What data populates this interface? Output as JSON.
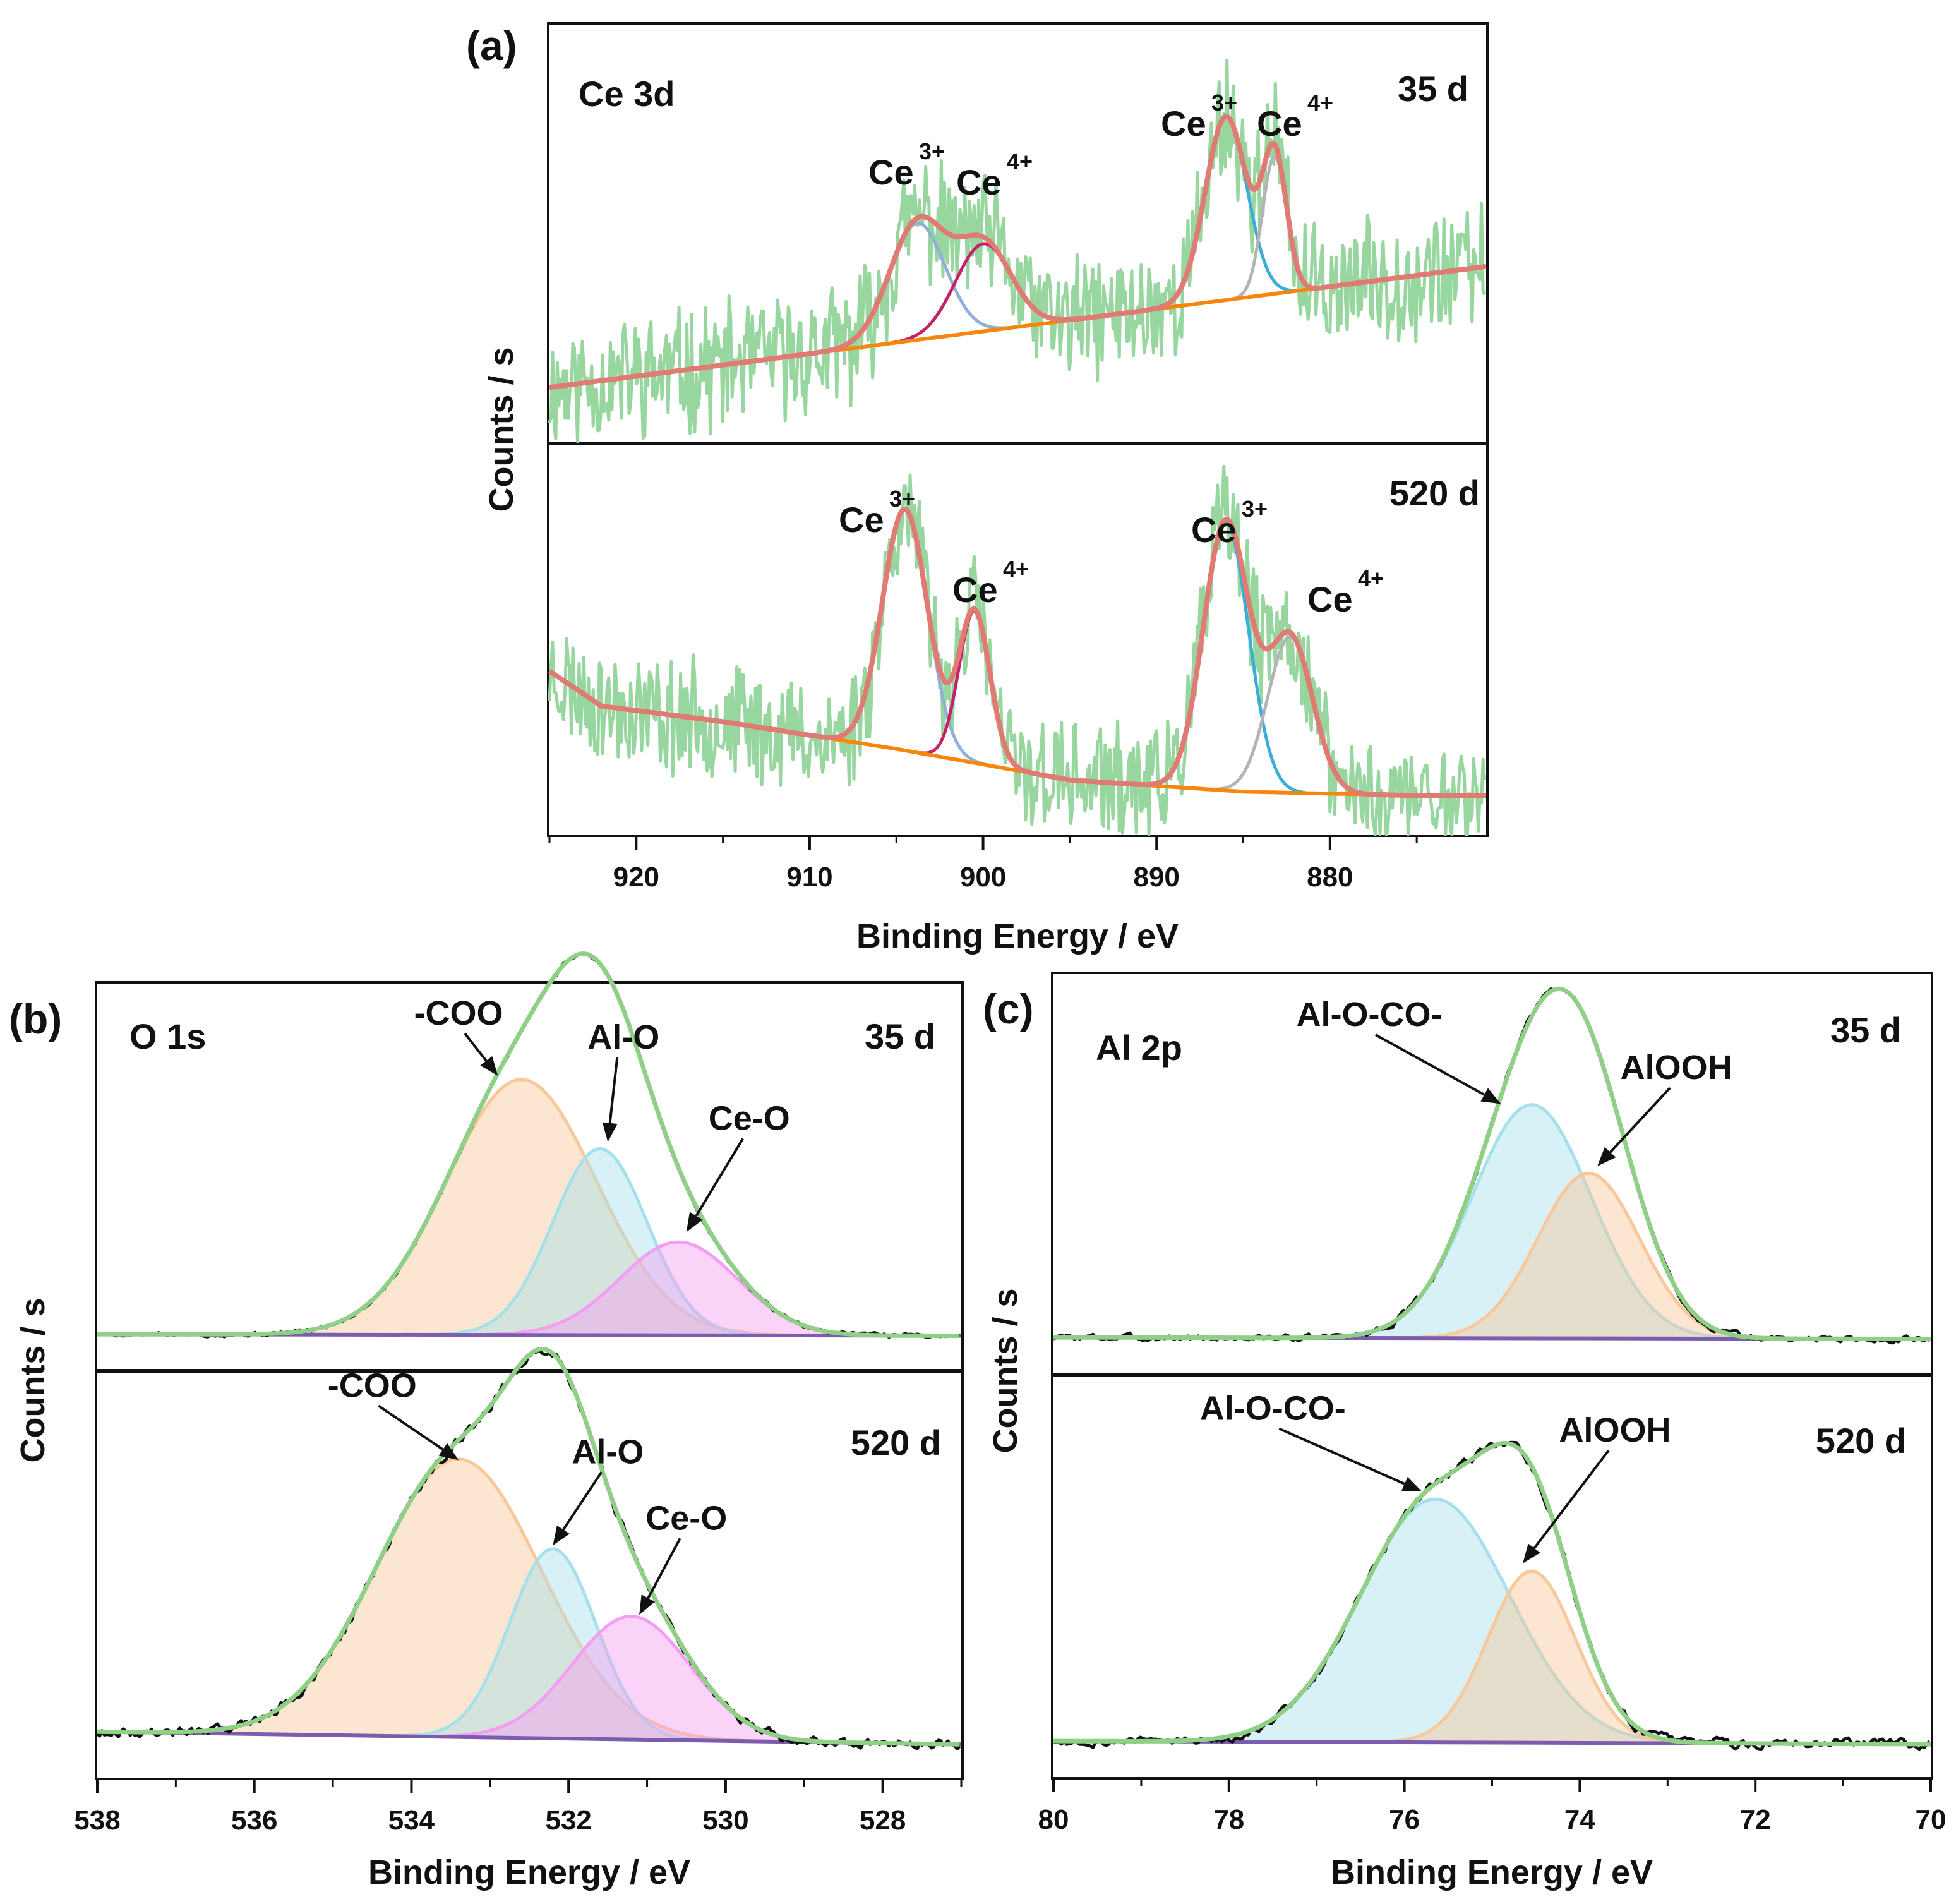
{
  "colors": {
    "raw_a": "#98d6a0",
    "fit_a": "#e07b74",
    "bg_a": "#f7860e",
    "ce3_high": "#91b0d8",
    "ce4_high": "#c4236a",
    "ce3_low": "#3aaed8",
    "ce4_low": "#b4b4b4",
    "raw_bc": "#111111",
    "fit_bc": "#8fcf86",
    "baseline_bc": "#7c5cae",
    "coo": "#f9c89a",
    "alo": "#a6e0ea",
    "ceo": "#f39ef2",
    "aloco": "#a6e0ea",
    "alooh": "#f9c89a"
  },
  "chart_data": [
    {
      "id": "a",
      "type": "line",
      "panel_label": "(a)",
      "element": "Ce 3d",
      "xlabel": "Binding Energy / eV",
      "ylabel": "Counts / s",
      "xlim": [
        925,
        871
      ],
      "xticks": [
        "920",
        "910",
        "900",
        "890",
        "880"
      ],
      "xtick_values": [
        920,
        910,
        900,
        890,
        880
      ],
      "sub": [
        {
          "time": "35 d",
          "ylim": [
            0,
            1
          ],
          "background": {
            "x": [
              925,
              871
            ],
            "y": [
              0.13,
              0.42
            ]
          },
          "peaks": [
            {
              "label": "Ce",
              "sup": "3+",
              "center": 903.8,
              "height": 0.28,
              "width": 1.6,
              "color": "ce3_high"
            },
            {
              "label": "Ce",
              "sup": "4+",
              "center": 900.0,
              "height": 0.21,
              "width": 1.6,
              "color": "ce4_high"
            },
            {
              "label": "Ce",
              "sup": "3+",
              "center": 886.0,
              "height": 0.44,
              "width": 1.2,
              "color": "ce3_low"
            },
            {
              "label": "Ce",
              "sup": "4+",
              "center": 883.2,
              "height": 0.33,
              "width": 0.7,
              "color": "ce4_low"
            }
          ],
          "noise": 0.13,
          "seed": 11
        },
        {
          "time": "520 d",
          "ylim": [
            0,
            1
          ],
          "background": {
            "x": [
              925,
              922,
              915,
              905,
              895,
              885,
              875,
              871
            ],
            "y": [
              0.42,
              0.33,
              0.29,
              0.22,
              0.14,
              0.11,
              0.1,
              0.1
            ]
          },
          "peaks": [
            {
              "label": "Ce",
              "sup": "3+",
              "center": 904.5,
              "height": 0.62,
              "width": 1.3,
              "color": "ce3_high"
            },
            {
              "label": "Ce",
              "sup": "4+",
              "center": 900.5,
              "height": 0.39,
              "width": 0.9,
              "color": "ce4_high"
            },
            {
              "label": "Ce",
              "sup": "3+",
              "center": 886.0,
              "height": 0.69,
              "width": 1.3,
              "color": "ce3_low"
            },
            {
              "label": "Ce",
              "sup": "4+",
              "center": 882.3,
              "height": 0.4,
              "width": 1.3,
              "color": "ce4_low"
            }
          ],
          "noise": 0.13,
          "seed": 23
        }
      ]
    },
    {
      "id": "b",
      "type": "area",
      "panel_label": "(b)",
      "element": "O 1s",
      "xlabel": "Binding Energy / eV",
      "ylabel": "Counts / s",
      "xlim": [
        538,
        527
      ],
      "xticks": [
        "538",
        "536",
        "534",
        "532",
        "530",
        "528"
      ],
      "xtick_values": [
        538,
        536,
        534,
        532,
        530,
        528
      ],
      "sub": [
        {
          "time": "35 d",
          "baseline": [
            0.0,
            -0.005
          ],
          "components": [
            {
              "name": "-COO",
              "center": 532.6,
              "height": 0.85,
              "sigma": 0.95,
              "color": "coo"
            },
            {
              "name": "Al-O",
              "center": 531.6,
              "height": 0.62,
              "sigma": 0.6,
              "color": "alo"
            },
            {
              "name": "Ce-O",
              "center": 530.6,
              "height": 0.31,
              "sigma": 0.75,
              "color": "ceo"
            }
          ],
          "noise": 0.005,
          "seed": 5,
          "annotations": [
            {
              "text": "-COO",
              "x": 533.4,
              "y": 1.03,
              "tx": 532.9,
              "ty": 0.86
            },
            {
              "text": "Al-O",
              "x": 531.3,
              "y": 0.95,
              "tx": 531.5,
              "ty": 0.64
            },
            {
              "text": "Ce-O",
              "x": 529.7,
              "y": 0.68,
              "tx": 530.5,
              "ty": 0.34
            }
          ]
        },
        {
          "time": "520 d",
          "baseline": [
            0.03,
            -0.01
          ],
          "components": [
            {
              "name": "-COO",
              "center": 533.4,
              "height": 0.88,
              "sigma": 1.05,
              "color": "coo"
            },
            {
              "name": "Al-O",
              "center": 532.2,
              "height": 0.6,
              "sigma": 0.55,
              "color": "alo"
            },
            {
              "name": "Ce-O",
              "center": 531.2,
              "height": 0.39,
              "sigma": 0.75,
              "color": "ceo"
            }
          ],
          "noise": 0.012,
          "seed": 9,
          "annotations": [
            {
              "text": "-COO",
              "x": 534.5,
              "y": 1.09,
              "tx": 533.4,
              "ty": 0.89
            },
            {
              "text": "Al-O",
              "x": 531.5,
              "y": 0.88,
              "tx": 532.2,
              "ty": 0.62
            },
            {
              "text": "Ce-O",
              "x": 530.5,
              "y": 0.67,
              "tx": 531.1,
              "ty": 0.4
            }
          ]
        }
      ]
    },
    {
      "id": "c",
      "type": "area",
      "panel_label": "(c)",
      "element": "Al 2p",
      "xlabel": "Binding Energy / eV",
      "ylabel": "Counts / s",
      "xlim": [
        80,
        70
      ],
      "xticks": [
        "80",
        "78",
        "76",
        "74",
        "72",
        "70"
      ],
      "xtick_values": [
        80,
        78,
        76,
        74,
        72,
        70
      ],
      "sub": [
        {
          "time": "35 d",
          "baseline": [
            0.0,
            -0.005
          ],
          "components": [
            {
              "name": "Al-O-CO-",
              "center": 74.55,
              "height": 0.75,
              "sigma": 0.68,
              "color": "aloco"
            },
            {
              "name": "AlOOH",
              "center": 73.9,
              "height": 0.53,
              "sigma": 0.58,
              "color": "alooh"
            }
          ],
          "noise": 0.008,
          "seed": 3,
          "annotations": [
            {
              "text": "Al-O-CO-",
              "x": 76.4,
              "y": 1.0,
              "tx": 74.9,
              "ty": 0.75
            },
            {
              "text": "AlOOH",
              "x": 72.9,
              "y": 0.83,
              "tx": 73.8,
              "ty": 0.55
            }
          ]
        },
        {
          "time": "520 d",
          "baseline": [
            0.0,
            -0.01
          ],
          "components": [
            {
              "name": "Al-O-CO-",
              "center": 75.65,
              "height": 0.78,
              "sigma": 0.85,
              "color": "aloco"
            },
            {
              "name": "AlOOH",
              "center": 74.55,
              "height": 0.55,
              "sigma": 0.5,
              "color": "alooh"
            }
          ],
          "noise": 0.012,
          "seed": 14,
          "annotations": [
            {
              "text": "Al-O-CO-",
              "x": 77.5,
              "y": 1.03,
              "tx": 75.8,
              "ty": 0.8
            },
            {
              "text": "AlOOH",
              "x": 73.6,
              "y": 0.96,
              "tx": 74.65,
              "ty": 0.57
            }
          ]
        }
      ]
    }
  ]
}
